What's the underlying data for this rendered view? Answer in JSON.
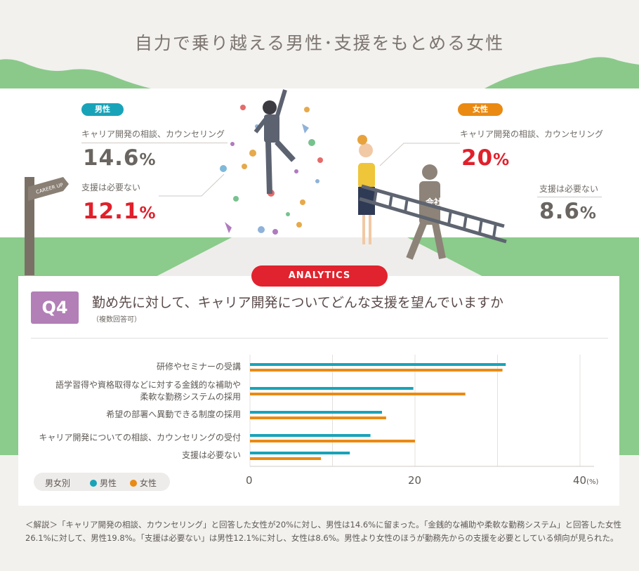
{
  "title": "自力で乗り越える男性･支援をもとめる女性",
  "signpost": "CAREER UP",
  "male": {
    "tag": "男性",
    "stats": [
      {
        "label": "キャリア開発の相談、カウンセリング",
        "value": "14.6",
        "unit": "%"
      },
      {
        "label": "支援は必要ない",
        "value": "12.1",
        "unit": "%"
      }
    ]
  },
  "female": {
    "tag": "女性",
    "stats": [
      {
        "label": "キャリア開発の相談、カウンセリング",
        "value": "20",
        "unit": "%"
      },
      {
        "label": "支援は必要ない",
        "value": "8.6",
        "unit": "%"
      }
    ]
  },
  "company_label": "会社",
  "analytics_label": "ANALYTICS",
  "question": {
    "number": "Q4",
    "text": "勤め先に対して、キャリア開発についてどんな支援を望んでいますか",
    "note": "（複数回答可）"
  },
  "legend": {
    "title": "男女別",
    "male": "男性",
    "female": "女性"
  },
  "colors": {
    "male": "#19a3b8",
    "female": "#ea8a12",
    "red": "#e0202b",
    "purple": "#b27fb7"
  },
  "chart_data": {
    "type": "bar",
    "orientation": "horizontal",
    "categories": [
      "研修やセミナーの受講",
      "語学習得や資格取得などに対する金銭的な補助や\n柔軟な勤務システムの採用",
      "希望の部署へ異動できる制度の採用",
      "キャリア開発についての相談、カウンセリングの受付",
      "支援は必要ない"
    ],
    "series": [
      {
        "name": "男性",
        "values": [
          31.0,
          19.8,
          16.0,
          14.6,
          12.1
        ]
      },
      {
        "name": "女性",
        "values": [
          30.6,
          26.1,
          16.5,
          20.0,
          8.6
        ]
      }
    ],
    "xlim": [
      0,
      40
    ],
    "xticks": [
      "0",
      "20",
      "40"
    ],
    "x_unit": "(%)",
    "grid": true,
    "legend_position": "bottom-left"
  },
  "note": "＜解説＞「キャリア開発の相談、カウンセリング」と回答した女性が20%に対し、男性は14.6%に留まった。「金銭的な補助や柔軟な勤務システム」と回答した女性26.1%に対して、男性19.8%。「支援は必要ない」は男性12.1%に対し、女性は8.6%。男性より女性のほうが勤務先からの支援を必要としている傾向が見られた。"
}
